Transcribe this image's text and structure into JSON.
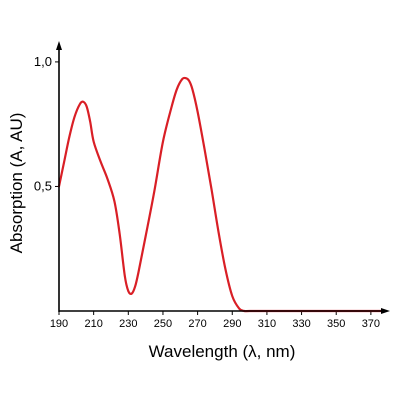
{
  "chart_data": {
    "type": "line",
    "xlabel": "Wavelength (λ, nm)",
    "ylabel": "Absorption (A, AU)",
    "xlim": [
      190,
      377
    ],
    "ylim": [
      0,
      1.1
    ],
    "x_ticks": [
      190,
      210,
      230,
      250,
      270,
      290,
      310,
      330,
      350,
      370
    ],
    "x_tick_labels": [
      "190",
      "210",
      "230",
      "250",
      "270",
      "290",
      "310",
      "330",
      "350",
      "370"
    ],
    "y_ticks": [
      0.5,
      1.0
    ],
    "y_tick_labels": [
      "0,5",
      "1,0"
    ],
    "series": [
      {
        "color": "#d91f26",
        "x": [
          190,
          193,
          196,
          199,
          202,
          204,
          206,
          208,
          210,
          214,
          218,
          222,
          225,
          228,
          230,
          232,
          234,
          236,
          240,
          245,
          250,
          255,
          258,
          261,
          263,
          265,
          267,
          270,
          274,
          278,
          282,
          286,
          290,
          294,
          297,
          300,
          310,
          330,
          350,
          377
        ],
        "y": [
          0.5,
          0.6,
          0.7,
          0.78,
          0.83,
          0.84,
          0.82,
          0.76,
          0.68,
          0.6,
          0.53,
          0.44,
          0.31,
          0.14,
          0.08,
          0.07,
          0.1,
          0.16,
          0.3,
          0.48,
          0.68,
          0.82,
          0.89,
          0.93,
          0.935,
          0.925,
          0.89,
          0.8,
          0.65,
          0.49,
          0.32,
          0.17,
          0.06,
          0.01,
          0.0,
          0.0,
          0.0,
          0.0,
          0.0,
          0.0
        ]
      }
    ]
  }
}
